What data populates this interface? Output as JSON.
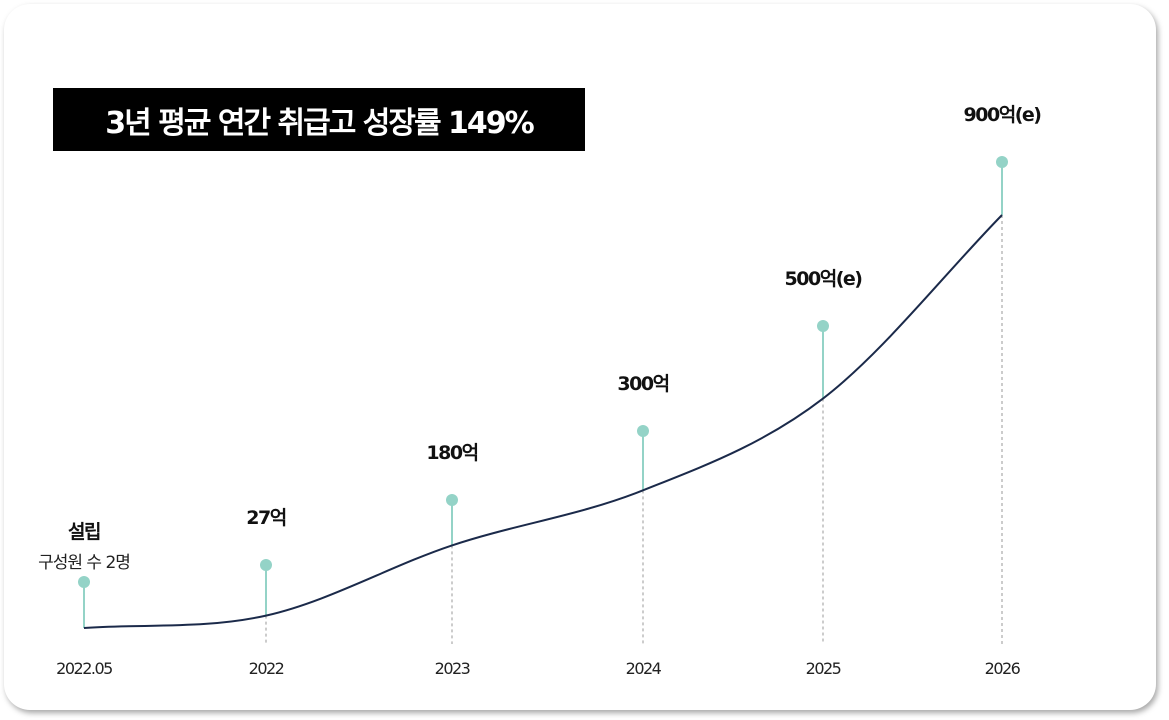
{
  "chart_data": {
    "type": "line",
    "title": "3년 평균 연간 취급고 성장률 149%",
    "categories": [
      "2022.05",
      "2022",
      "2023",
      "2024",
      "2025",
      "2026"
    ],
    "values": [
      0,
      27,
      180,
      300,
      500,
      900
    ],
    "value_labels": [
      "설립",
      "27억",
      "180억",
      "300억",
      "500억(e)",
      "900억(e)"
    ],
    "first_point_sublabel": "구성원 수 2명",
    "unit": "억",
    "estimated": [
      false,
      false,
      false,
      false,
      true,
      true
    ],
    "colors": {
      "curve": "#1b2a4a",
      "marker": "#94d3c7",
      "title_bg": "#000000",
      "title_text": "#ffffff"
    }
  }
}
